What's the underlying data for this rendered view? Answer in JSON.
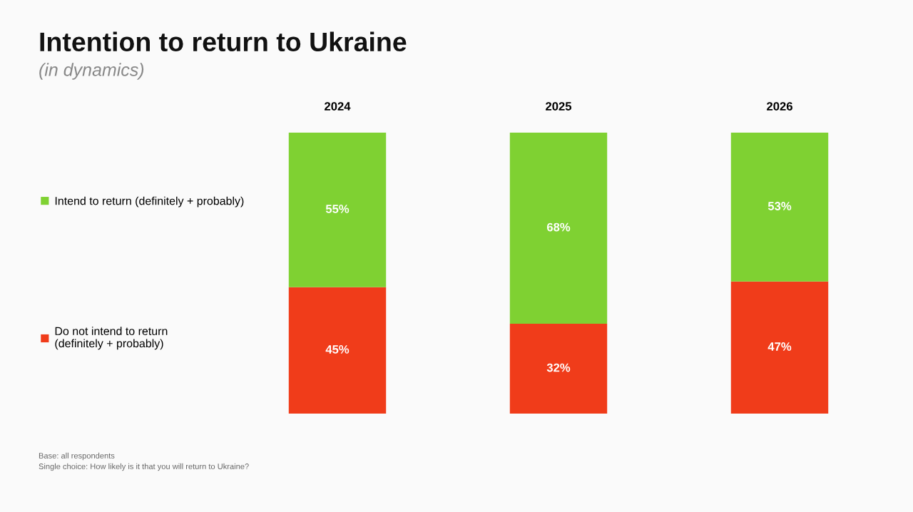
{
  "chart_data": {
    "type": "bar",
    "title": "Intention to return to Ukraine",
    "subtitle": "(in dynamics)",
    "categories": [
      "2024",
      "2025",
      "2026"
    ],
    "stacked": true,
    "legend": "left",
    "grid": false,
    "series": [
      {
        "name": "Do not intend to return\n(definitely + probably)",
        "color": "#f03c1a",
        "values": [
          45,
          32,
          47
        ],
        "value_labels": [
          "45%",
          "32%",
          "47%"
        ]
      },
      {
        "name": "Intend to return (definitely + probably)",
        "color": "#7fd132",
        "values": [
          55,
          68,
          53
        ],
        "value_labels": [
          "55%",
          "68%",
          "53%"
        ]
      }
    ],
    "annotations": [
      "Base: all respondents",
      "Single choice: How likely is it that you will return to Ukraine?"
    ]
  }
}
